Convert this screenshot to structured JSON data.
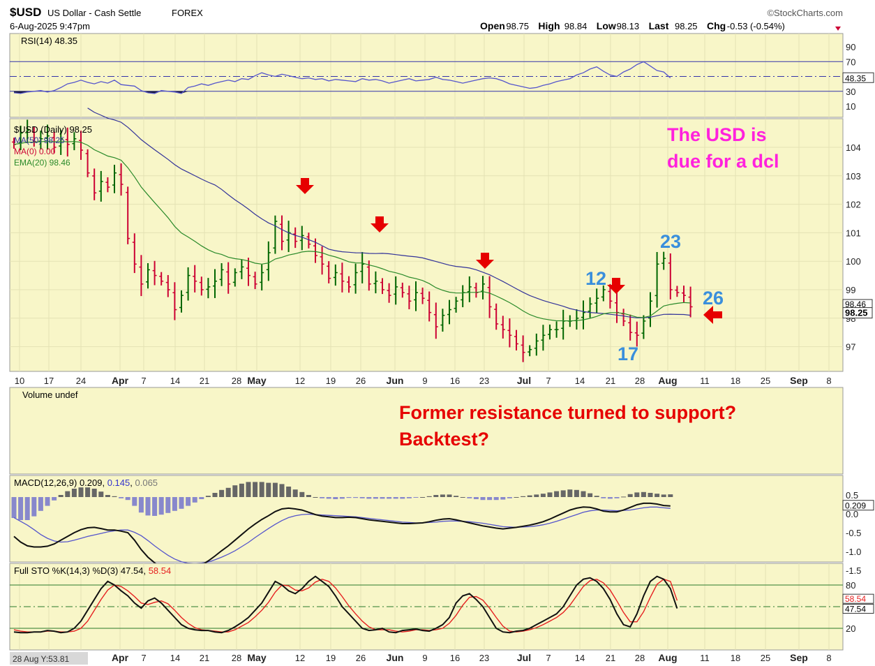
{
  "header": {
    "symbol": "$USD",
    "name": "US Dollar - Cash Settle",
    "exchange": "FOREX",
    "brand": "©StockCharts.com",
    "datetime": "6-Aug-2025 9:47pm",
    "ohlc": [
      {
        "label": "Open",
        "value": "98.75"
      },
      {
        "label": "High",
        "value": "98.84"
      },
      {
        "label": "Low",
        "value": "98.13"
      },
      {
        "label": "Last",
        "value": "98.25"
      },
      {
        "label": "Chg",
        "value": "-0.53 (-0.54%)"
      }
    ],
    "colors": {
      "up": "#006600",
      "down": "#cc0033",
      "panel_bg": "#f8f6c8"
    }
  },
  "chart_data": {
    "type": "line",
    "x_ticks": [
      "10",
      "17",
      "24",
      "Apr",
      "7",
      "14",
      "21",
      "28",
      "May",
      "12",
      "19",
      "26",
      "Jun",
      "9",
      "16",
      "23",
      "Jul",
      "7",
      "14",
      "21",
      "28",
      "Aug",
      "11",
      "18",
      "25",
      "Sep",
      "8"
    ],
    "x_ticks_bold": [
      "Apr",
      "May",
      "Jun",
      "Jul",
      "Aug",
      "Sep"
    ],
    "rsi": {
      "label": "RSI(14) 48.35",
      "y_ticks": [
        "90",
        "70",
        "50",
        "30",
        "10"
      ],
      "levels": [
        70,
        50,
        30
      ],
      "last_label": "48.35",
      "values": [
        28,
        27,
        29,
        30,
        31,
        29,
        31,
        35,
        40,
        42,
        45,
        42,
        40,
        43,
        41,
        45,
        39,
        38,
        37,
        31,
        28,
        27,
        31,
        30,
        29,
        27,
        35,
        37,
        40,
        38,
        41,
        43,
        45,
        43,
        47,
        46,
        51,
        55,
        52,
        50,
        53,
        51,
        49,
        47,
        48,
        46,
        47,
        44,
        46,
        45,
        44,
        43,
        47,
        45,
        46,
        44,
        41,
        43,
        45,
        47,
        44,
        45,
        46,
        49,
        46,
        45,
        43,
        41,
        43,
        45,
        47,
        48,
        47,
        44,
        40,
        38,
        36,
        34,
        35,
        38,
        40,
        43,
        45,
        47,
        52,
        55,
        60,
        63,
        57,
        52,
        50,
        56,
        60,
        66,
        70,
        64,
        58,
        56,
        48
      ]
    },
    "price": {
      "label": "$USD (Daily) 98.25",
      "ma50_label": "MA(50) 98.25",
      "ma0_label": "MA(0) 0.00",
      "ema20_label": "EMA(20) 98.46",
      "y_ticks": [
        "104",
        "103",
        "102",
        "101",
        "100",
        "99",
        "98",
        "97"
      ],
      "last_labels": [
        "98.46",
        "98.25"
      ],
      "closes": [
        104.1,
        104.5,
        104.6,
        104.2,
        104.3,
        104.4,
        104.0,
        104.3,
        104.1,
        104.3,
        103.9,
        103.1,
        102.4,
        102.8,
        102.6,
        103.1,
        102.7,
        100.8,
        99.9,
        99.2,
        99.7,
        99.5,
        99.3,
        99.0,
        98.3,
        98.8,
        99.5,
        99.3,
        99.0,
        99.1,
        99.3,
        99.7,
        99.2,
        99.6,
        99.8,
        99.5,
        99.2,
        99.6,
        100.3,
        101.4,
        100.7,
        101.0,
        100.7,
        100.9,
        100.6,
        100.2,
        99.9,
        99.4,
        99.6,
        99.3,
        99.1,
        99.6,
        99.9,
        99.2,
        99.3,
        99.0,
        98.8,
        99.1,
        98.9,
        98.6,
        98.9,
        98.7,
        98.2,
        97.7,
        98.1,
        98.3,
        98.6,
        98.9,
        99.1,
        98.9,
        99.2,
        98.4,
        97.8,
        97.6,
        97.4,
        97.1,
        96.8,
        96.9,
        97.2,
        97.4,
        97.6,
        97.6,
        97.9,
        97.9,
        98.0,
        98.2,
        98.5,
        98.7,
        99.0,
        98.6,
        98.2,
        97.9,
        97.5,
        97.4,
        97.9,
        98.6,
        99.9,
        100.1,
        99.0,
        98.9,
        98.8,
        98.4
      ]
    },
    "volume": {
      "label": "Volume undef"
    },
    "macd": {
      "label_prefix": "MACD(12,26,9)",
      "value": "0.209",
      "signal": "0.145",
      "hist": "0.065",
      "y_ticks": [
        "0.5",
        "0.0",
        "-0.5",
        "-1.0",
        "-1.5"
      ],
      "last_label": "0.209",
      "macd": [
        -0.6,
        -0.75,
        -0.85,
        -0.88,
        -0.88,
        -0.86,
        -0.8,
        -0.7,
        -0.6,
        -0.5,
        -0.42,
        -0.37,
        -0.36,
        -0.39,
        -0.43,
        -0.43,
        -0.46,
        -0.5,
        -0.7,
        -0.95,
        -1.15,
        -1.3,
        -1.4,
        -1.48,
        -1.53,
        -1.55,
        -1.52,
        -1.45,
        -1.36,
        -1.25,
        -1.12,
        -0.98,
        -0.85,
        -0.7,
        -0.55,
        -0.4,
        -0.27,
        -0.15,
        -0.05,
        0.06,
        0.13,
        0.15,
        0.13,
        0.1,
        0.04,
        -0.02,
        -0.06,
        -0.08,
        -0.1,
        -0.1,
        -0.09,
        -0.1,
        -0.13,
        -0.16,
        -0.18,
        -0.2,
        -0.22,
        -0.24,
        -0.26,
        -0.26,
        -0.25,
        -0.24,
        -0.21,
        -0.17,
        -0.14,
        -0.13,
        -0.16,
        -0.2,
        -0.24,
        -0.28,
        -0.32,
        -0.35,
        -0.38,
        -0.4,
        -0.38,
        -0.36,
        -0.33,
        -0.3,
        -0.26,
        -0.21,
        -0.14,
        -0.06,
        0.02,
        0.1,
        0.15,
        0.18,
        0.17,
        0.13,
        0.07,
        0.05,
        0.05,
        0.1,
        0.17,
        0.24,
        0.28,
        0.28,
        0.26,
        0.22,
        0.21
      ],
      "signal_line": [
        -0.1,
        -0.2,
        -0.3,
        -0.42,
        -0.55,
        -0.65,
        -0.72,
        -0.75,
        -0.74,
        -0.7,
        -0.65,
        -0.6,
        -0.56,
        -0.52,
        -0.48,
        -0.45,
        -0.43,
        -0.43,
        -0.49,
        -0.58,
        -0.71,
        -0.85,
        -0.98,
        -1.1,
        -1.2,
        -1.27,
        -1.31,
        -1.32,
        -1.31,
        -1.28,
        -1.22,
        -1.15,
        -1.07,
        -0.98,
        -0.87,
        -0.76,
        -0.63,
        -0.51,
        -0.39,
        -0.28,
        -0.18,
        -0.1,
        -0.05,
        -0.02,
        -0.01,
        -0.02,
        -0.03,
        -0.04,
        -0.05,
        -0.06,
        -0.07,
        -0.08,
        -0.1,
        -0.12,
        -0.14,
        -0.16,
        -0.18,
        -0.2,
        -0.22,
        -0.23,
        -0.24,
        -0.24,
        -0.23,
        -0.22,
        -0.2,
        -0.19,
        -0.19,
        -0.2,
        -0.21,
        -0.23,
        -0.25,
        -0.28,
        -0.31,
        -0.34,
        -0.35,
        -0.36,
        -0.35,
        -0.34,
        -0.32,
        -0.29,
        -0.25,
        -0.2,
        -0.14,
        -0.08,
        -0.02,
        0.04,
        0.08,
        0.1,
        0.1,
        0.09,
        0.08,
        0.09,
        0.1,
        0.13,
        0.16,
        0.18,
        0.18,
        0.16,
        0.145
      ]
    },
    "sto": {
      "label_prefix": "Full STO %K(14,3) %D(3)",
      "k_value": "47.54",
      "d_value": "58.54",
      "y_ticks": [
        "80",
        "50",
        "20"
      ],
      "levels": [
        80,
        50,
        20
      ],
      "last_labels": [
        "58.54",
        "47.54"
      ],
      "k": [
        15,
        14,
        14,
        15,
        15,
        17,
        16,
        14,
        15,
        20,
        30,
        45,
        60,
        75,
        85,
        80,
        72,
        65,
        55,
        48,
        58,
        62,
        55,
        45,
        35,
        25,
        20,
        18,
        17,
        17,
        15,
        14,
        17,
        22,
        28,
        35,
        45,
        55,
        70,
        85,
        80,
        72,
        68,
        75,
        85,
        92,
        85,
        78,
        65,
        50,
        40,
        30,
        20,
        17,
        18,
        20,
        15,
        14,
        17,
        18,
        19,
        17,
        16,
        20,
        25,
        35,
        55,
        65,
        68,
        60,
        50,
        35,
        20,
        15,
        14,
        16,
        17,
        20,
        25,
        30,
        35,
        40,
        50,
        65,
        80,
        88,
        90,
        85,
        75,
        60,
        40,
        25,
        22,
        40,
        65,
        85,
        92,
        88,
        75,
        47.5
      ],
      "d": [
        18,
        16,
        15,
        15,
        15,
        16,
        16,
        15,
        15,
        16,
        20,
        30,
        45,
        60,
        73,
        80,
        78,
        72,
        64,
        55,
        53,
        56,
        58,
        54,
        45,
        35,
        27,
        21,
        18,
        17,
        16,
        15,
        15,
        18,
        23,
        28,
        36,
        45,
        56,
        70,
        80,
        79,
        73,
        72,
        76,
        84,
        88,
        85,
        76,
        64,
        51,
        40,
        30,
        22,
        18,
        18,
        18,
        16,
        15,
        16,
        18,
        18,
        17,
        18,
        20,
        27,
        38,
        52,
        63,
        64,
        59,
        48,
        35,
        23,
        16,
        15,
        16,
        18,
        21,
        25,
        30,
        35,
        42,
        52,
        65,
        78,
        86,
        88,
        83,
        73,
        58,
        42,
        29,
        29,
        43,
        63,
        81,
        88,
        85,
        58.5
      ]
    },
    "annotations": [
      {
        "text": "The USD is",
        "color": "#ff22dd"
      },
      {
        "text": "due for a dcl",
        "color": "#ff22dd"
      },
      {
        "text": "Former resistance turned to support?",
        "color": "#e60000"
      },
      {
        "text": "Backtest?",
        "color": "#e60000"
      },
      {
        "text": "23",
        "color": "#3a8fdc"
      },
      {
        "text": "12",
        "color": "#3a8fdc"
      },
      {
        "text": "26",
        "color": "#3a8fdc"
      },
      {
        "text": "17",
        "color": "#3a8fdc"
      }
    ],
    "footer": "28 Aug Y:53.81"
  }
}
